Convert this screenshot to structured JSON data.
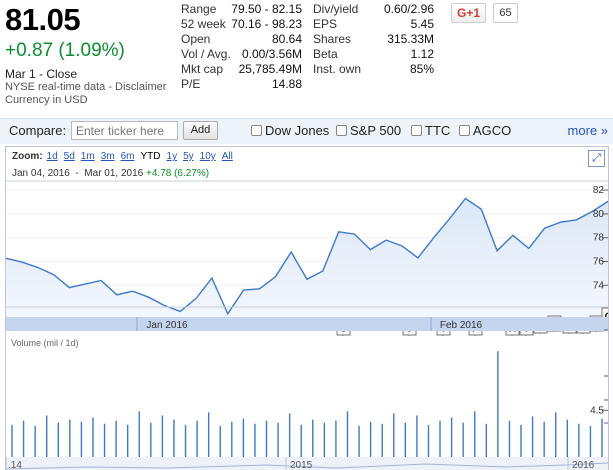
{
  "quote": {
    "price": "81.05",
    "change": "+0.87 (1.09%)",
    "close_label": "Mar 1 - Close",
    "source": "NYSE real-time data",
    "disclaimer": "Disclaimer",
    "currency": "Currency in USD"
  },
  "stats_left": [
    {
      "k": "Range",
      "v": "79.50 - 82.15"
    },
    {
      "k": "52 week",
      "v": "70.16 - 98.23"
    },
    {
      "k": "Open",
      "v": "80.64"
    },
    {
      "k": "Vol / Avg.",
      "v": "0.00/3.56M"
    },
    {
      "k": "Mkt cap",
      "v": "25,785.49M"
    },
    {
      "k": "P/E",
      "v": "14.88"
    }
  ],
  "stats_right": [
    {
      "k": "Div/yield",
      "v": "0.60/2.96"
    },
    {
      "k": "EPS",
      "v": "5.45"
    },
    {
      "k": "Shares",
      "v": "315.33M"
    },
    {
      "k": "Beta",
      "v": "1.12"
    },
    {
      "k": "Inst. own",
      "v": "85%"
    }
  ],
  "gplus": {
    "label": "G+1",
    "count": "65"
  },
  "compare": {
    "label": "Compare:",
    "placeholder": "Enter ticker here",
    "add_label": "Add",
    "checkboxes": [
      "Dow Jones",
      "S&P 500",
      "TTC",
      "AGCO"
    ],
    "more_label": "more »"
  },
  "zoom": {
    "label": "Zoom:",
    "options": [
      "1d",
      "5d",
      "1m",
      "3m",
      "6m",
      "YTD",
      "1y",
      "5y",
      "10y",
      "All"
    ],
    "active": "YTD"
  },
  "range": {
    "start": "Jan 04, 2016",
    "sep": "-",
    "end": "Mar 01, 2016",
    "gain": "+4.78 (6.27%)"
  },
  "chart_data": {
    "type": "line",
    "price": {
      "yticks": [
        74,
        76,
        78,
        80,
        82
      ],
      "ylim": [
        71.5,
        82.6
      ],
      "values": [
        76.27,
        75.95,
        75.5,
        74.9,
        73.8,
        74.1,
        74.4,
        73.2,
        73.5,
        73.0,
        72.3,
        71.8,
        72.9,
        74.6,
        71.6,
        73.6,
        73.7,
        74.7,
        76.8,
        74.5,
        75.2,
        78.5,
        78.3,
        77.0,
        77.8,
        77.3,
        76.3,
        78.0,
        79.6,
        81.3,
        80.4,
        76.9,
        78.2,
        77.1,
        78.8,
        79.3,
        79.5,
        80.2,
        81.05
      ]
    },
    "month_labels": [
      "Jan 2016",
      "Feb 2016"
    ],
    "news_flags": [
      "O",
      "U",
      "I",
      "P",
      "X",
      "V",
      "K",
      "E",
      "Y",
      "B",
      "W",
      "G",
      "L"
    ],
    "volume": {
      "label": "Volume (mil / 1d)",
      "yticks": [
        4.5
      ],
      "ylim": [
        0,
        10.4
      ],
      "values": [
        3.1,
        3.5,
        3.0,
        4.0,
        3.3,
        3.6,
        3.4,
        3.8,
        3.2,
        3.5,
        3.1,
        4.4,
        3.3,
        4.0,
        3.6,
        3.1,
        3.5,
        4.3,
        3.0,
        3.4,
        3.7,
        3.2,
        3.5,
        3.3,
        4.2,
        3.1,
        3.6,
        3.3,
        3.5,
        4.4,
        3.0,
        3.4,
        3.2,
        4.2,
        3.3,
        4.0,
        3.1,
        3.5,
        3.8,
        3.3,
        4.4,
        3.2,
        10.2,
        3.5,
        3.1,
        3.9,
        3.4,
        4.3,
        3.6,
        3.2,
        3.0,
        3.7
      ]
    },
    "overview_labels": [
      ".14",
      "2015",
      "2016"
    ]
  }
}
